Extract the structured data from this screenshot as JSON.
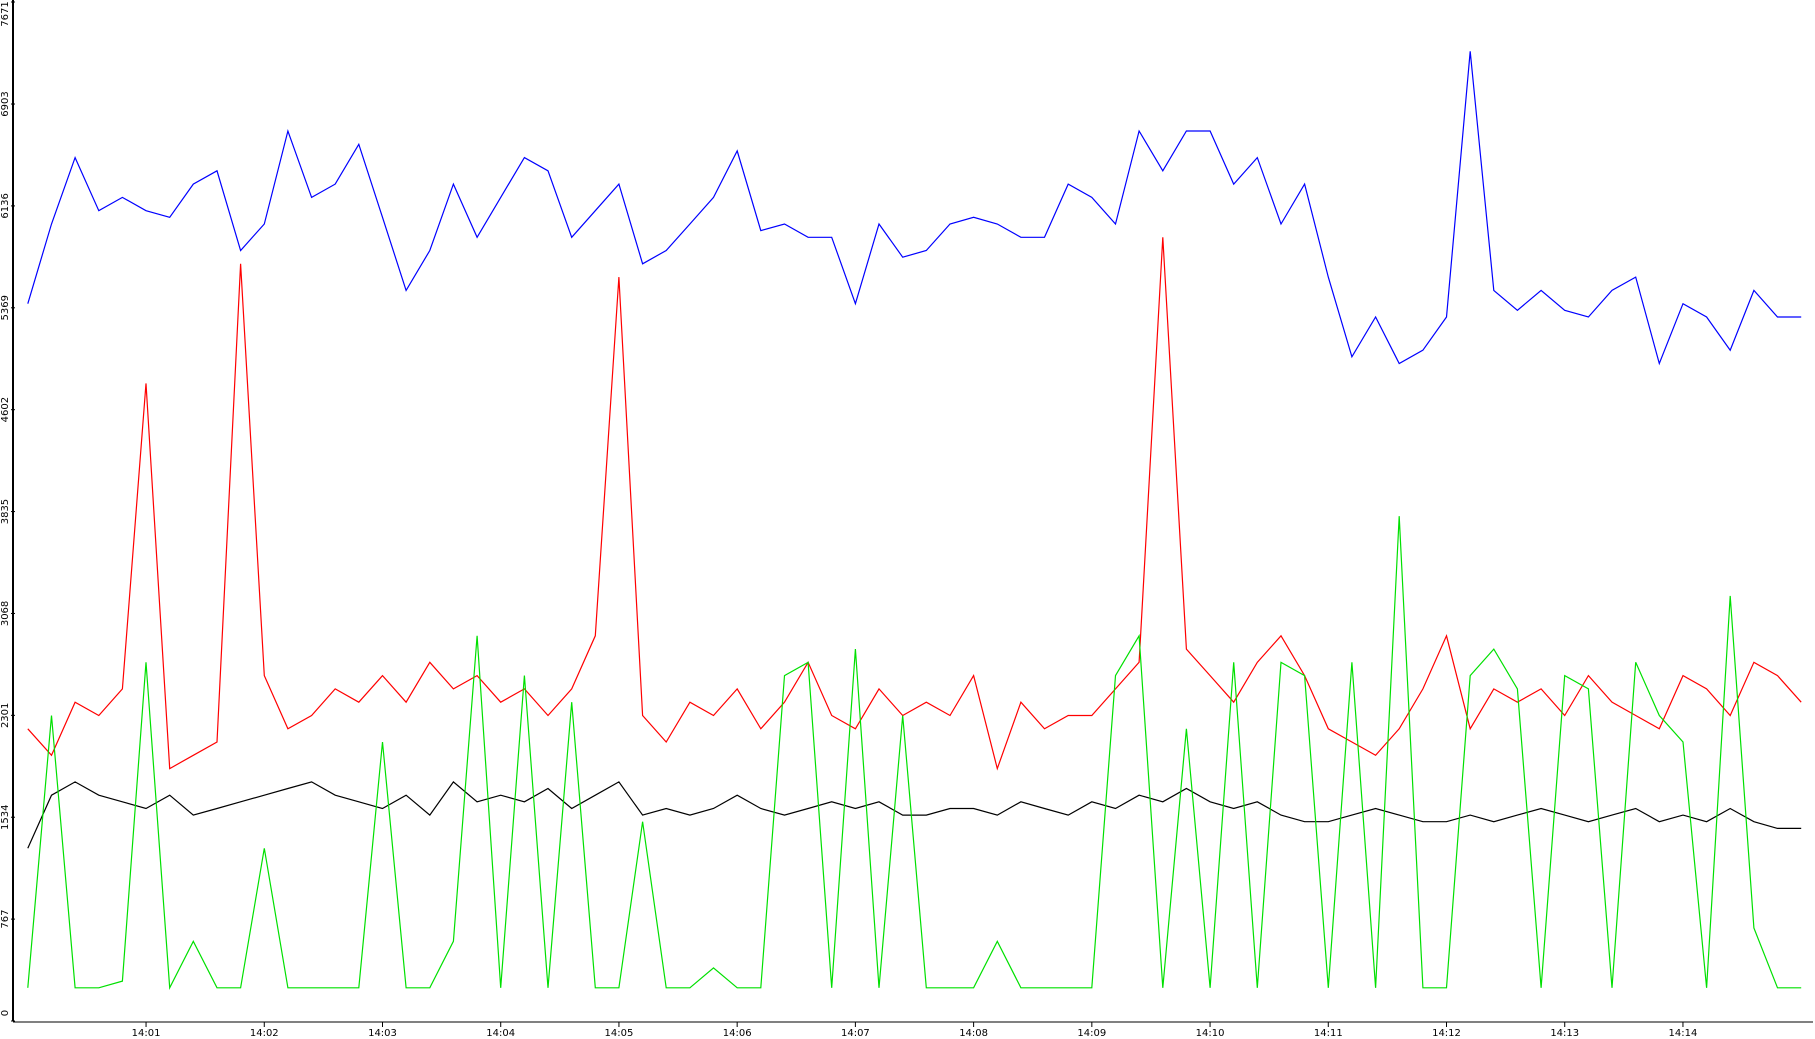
{
  "chart_data": {
    "type": "line",
    "categories": [
      null,
      null,
      null,
      null,
      null,
      "14:01",
      null,
      null,
      null,
      null,
      "14:02",
      null,
      null,
      null,
      null,
      "14:03",
      null,
      null,
      null,
      null,
      "14:04",
      null,
      null,
      null,
      null,
      "14:05",
      null,
      null,
      null,
      null,
      "14:06",
      null,
      null,
      null,
      null,
      "14:07",
      null,
      null,
      null,
      null,
      "14:08",
      null,
      null,
      null,
      null,
      "14:09",
      null,
      null,
      null,
      null,
      "14:10",
      null,
      null,
      null,
      null,
      "14:11",
      null,
      null,
      null,
      null,
      "14:12",
      null,
      null,
      null,
      null,
      "14:13",
      null,
      null,
      null,
      null,
      "14:14",
      null,
      null,
      null,
      null,
      null
    ],
    "series": [
      {
        "color": "#0000ff",
        "values": [
          5400,
          6000,
          6500,
          6100,
          6200,
          6100,
          6050,
          6300,
          6400,
          5800,
          6000,
          6700,
          6200,
          6300,
          6600,
          6050,
          5500,
          5800,
          6300,
          5900,
          6200,
          6500,
          6400,
          5900,
          6100,
          6300,
          5700,
          5800,
          6000,
          6200,
          6550,
          5950,
          6000,
          5900,
          5900,
          5400,
          6000,
          5750,
          5800,
          6000,
          6050,
          6000,
          5900,
          5900,
          6300,
          6200,
          6000,
          6700,
          6400,
          6700,
          6700,
          6300,
          6500,
          6000,
          6300,
          5600,
          5000,
          5300,
          4950,
          5050,
          5300,
          7300,
          5500,
          5350,
          5500,
          5350,
          5300,
          5500,
          5600,
          4950,
          5400,
          5300,
          5050,
          5500,
          5300,
          5300
        ]
      },
      {
        "color": "#ff0000",
        "values": [
          2200,
          2000,
          2400,
          2300,
          2500,
          4800,
          1900,
          2000,
          2100,
          5700,
          2600,
          2200,
          2300,
          2500,
          2400,
          2600,
          2400,
          2700,
          2500,
          2600,
          2400,
          2500,
          2300,
          2500,
          2900,
          5600,
          2300,
          2100,
          2400,
          2300,
          2500,
          2200,
          2400,
          2700,
          2300,
          2200,
          2500,
          2300,
          2400,
          2300,
          2600,
          1900,
          2400,
          2200,
          2300,
          2300,
          2500,
          2700,
          5900,
          2800,
          2600,
          2400,
          2700,
          2900,
          2600,
          2200,
          2100,
          2000,
          2200,
          2500,
          2900,
          2200,
          2500,
          2400,
          2500,
          2300,
          2600,
          2400,
          2300,
          2200,
          2600,
          2500,
          2300,
          2700,
          2600,
          2400
        ]
      },
      {
        "color": "#000000",
        "values": [
          1300,
          1700,
          1800,
          1700,
          1650,
          1600,
          1700,
          1550,
          1600,
          1650,
          1700,
          1750,
          1800,
          1700,
          1650,
          1600,
          1700,
          1550,
          1800,
          1650,
          1700,
          1650,
          1750,
          1600,
          1700,
          1800,
          1550,
          1600,
          1550,
          1600,
          1700,
          1600,
          1550,
          1600,
          1650,
          1600,
          1650,
          1550,
          1550,
          1600,
          1600,
          1550,
          1650,
          1600,
          1550,
          1650,
          1600,
          1700,
          1650,
          1750,
          1650,
          1600,
          1650,
          1550,
          1500,
          1500,
          1550,
          1600,
          1550,
          1500,
          1500,
          1550,
          1500,
          1550,
          1600,
          1550,
          1500,
          1550,
          1600,
          1500,
          1550,
          1500,
          1600,
          1500,
          1450,
          1450
        ]
      },
      {
        "color": "#00e000",
        "values": [
          250,
          2300,
          250,
          250,
          300,
          2700,
          250,
          600,
          250,
          250,
          1300,
          250,
          250,
          250,
          250,
          2100,
          250,
          250,
          600,
          2900,
          250,
          2600,
          250,
          2400,
          250,
          250,
          1500,
          250,
          250,
          400,
          250,
          250,
          2600,
          2700,
          250,
          2800,
          250,
          2300,
          250,
          250,
          250,
          600,
          250,
          250,
          250,
          250,
          2600,
          2900,
          250,
          2200,
          250,
          2700,
          250,
          2700,
          2600,
          250,
          2700,
          250,
          3800,
          250,
          250,
          2600,
          2800,
          2500,
          250,
          2600,
          2500,
          250,
          2700,
          2300,
          2100,
          250,
          3200,
          700,
          250,
          250
        ]
      }
    ],
    "ylim": [
      0,
      7671
    ],
    "yticks": [
      0,
      767,
      1534,
      2301,
      3068,
      3835,
      4602,
      5369,
      6136,
      6903,
      7671
    ]
  }
}
